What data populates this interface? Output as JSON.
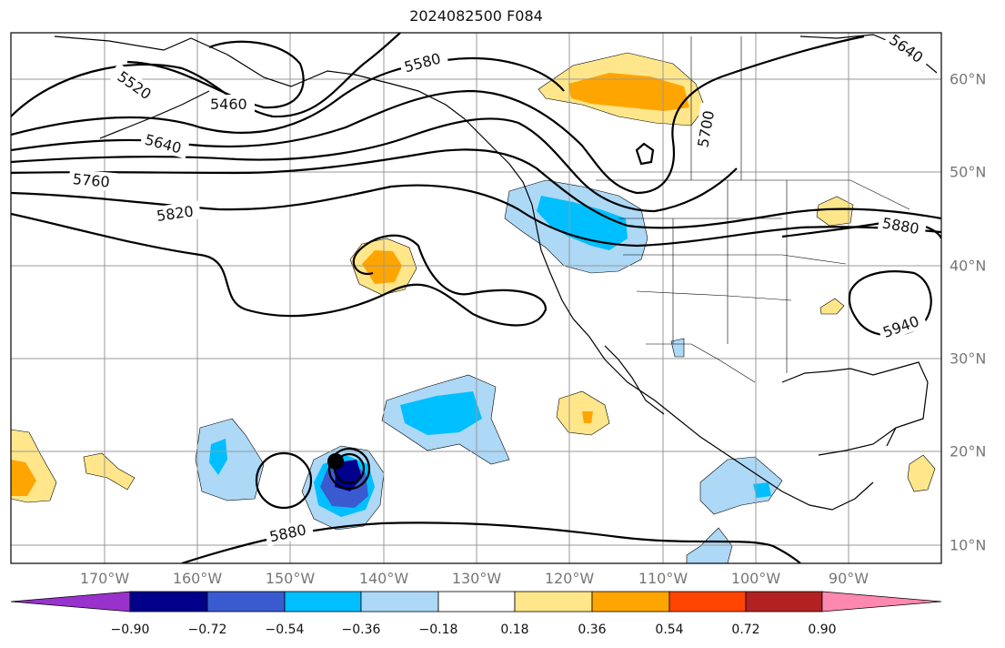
{
  "title": "2024082500 F084",
  "lon_labels": [
    "170°W",
    "160°W",
    "150°W",
    "140°W",
    "130°W",
    "120°W",
    "110°W",
    "100°W",
    "90°W"
  ],
  "lat_labels": [
    "60°N",
    "50°N",
    "40°N",
    "30°N",
    "20°N",
    "10°N"
  ],
  "contour_labels": [
    "5520",
    "5460",
    "5580",
    "5640",
    "5640",
    "5700",
    "5760",
    "5820",
    "5880",
    "5880",
    "5940"
  ],
  "colorbar": {
    "ticks": [
      "−0.90",
      "−0.72",
      "−0.54",
      "−0.36",
      "−0.18",
      "0.18",
      "0.36",
      "0.54",
      "0.72",
      "0.90"
    ],
    "colors": [
      "#9932cc",
      "#00008b",
      "#3a5bd0",
      "#00bfff",
      "#add8f6",
      "#ffffff",
      "#ffe68a",
      "#ffa500",
      "#ff4500",
      "#b22222",
      "#ff88b0"
    ]
  }
}
